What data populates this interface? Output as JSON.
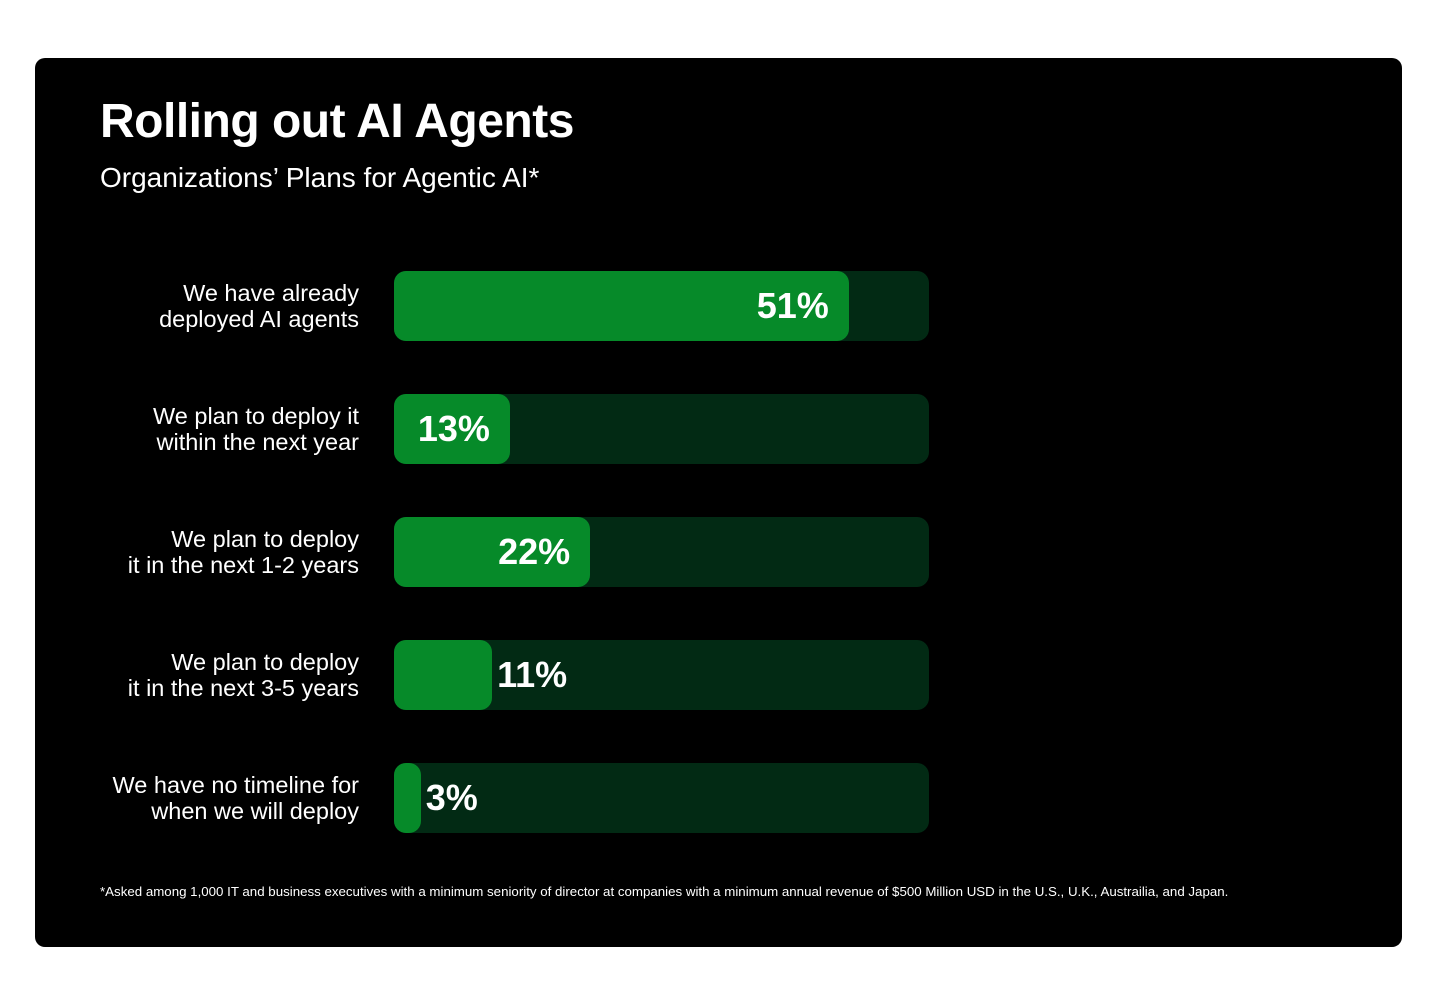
{
  "chart_data": {
    "type": "bar",
    "orientation": "horizontal",
    "title": "Rolling out AI Agents",
    "subtitle": "Organizations’ Plans for Agentic AI*",
    "categories": [
      [
        "We have already",
        "deployed AI agents"
      ],
      [
        "We plan to deploy it",
        "within the next year"
      ],
      [
        "We plan to deploy",
        "it in the next 1-2 years"
      ],
      [
        "We plan to deploy",
        "it in the next 3-5 years"
      ],
      [
        "We have no timeline for",
        "when we will deploy"
      ]
    ],
    "values": [
      51,
      13,
      22,
      11,
      3
    ],
    "value_labels": [
      "51%",
      "13%",
      "22%",
      "11%",
      "3%"
    ],
    "xlim": [
      0,
      60
    ],
    "grid": false,
    "colors": {
      "fill": "#068a29",
      "track": "#022a14",
      "background": "#000000"
    },
    "footnote": "*Asked among 1,000 IT and business executives with a minimum seniority of director at companies with a minimum annual revenue of $500 Million USD in the U.S., U.K., Austrailia, and Japan."
  }
}
